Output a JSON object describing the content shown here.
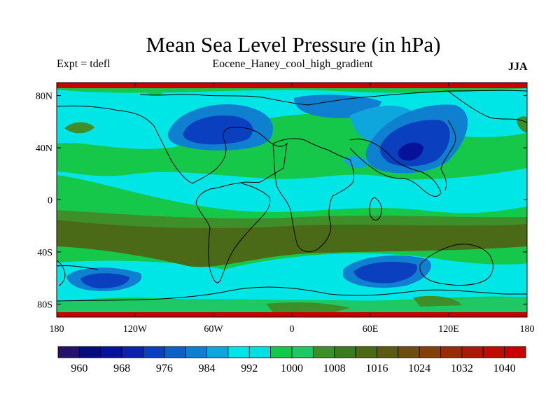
{
  "header": {
    "title": "Mean Sea Level Pressure (in hPa)",
    "experiment": "Expt = tdefl",
    "case_name": "Eocene_Haney_cool_high_gradient",
    "season": "JJA"
  },
  "axes": {
    "lat_ticks": [
      "80N",
      "40N",
      "0",
      "40S",
      "80S"
    ],
    "lon_ticks": [
      "180",
      "120W",
      "60W",
      "0",
      "60E",
      "120E",
      "180"
    ]
  },
  "colorbar": {
    "labels": [
      "960",
      "968",
      "976",
      "984",
      "992",
      "1000",
      "1008",
      "1016",
      "1024",
      "1032",
      "1040"
    ],
    "colors": [
      "#26126a",
      "#050c7d",
      "#07129a",
      "#0a22ad",
      "#0a3fbf",
      "#0f60c6",
      "#0f80d0",
      "#0ea6dd",
      "#00e5e5",
      "#00e0e0",
      "#16c84a",
      "#1ec864",
      "#3e8e2a",
      "#3c7a22",
      "#4a6a18",
      "#5a5a14",
      "#6e4e10",
      "#82400c",
      "#962c08",
      "#aa1a06",
      "#be0c04",
      "#c80000"
    ]
  },
  "chart_data": {
    "type": "heatmap",
    "title": "Mean Sea Level Pressure (in hPa)",
    "variable_units": "hPa",
    "xlim": [
      -180,
      180
    ],
    "ylim": [
      -90,
      90
    ],
    "x_ticks": [
      -180,
      -120,
      -60,
      0,
      60,
      120,
      180
    ],
    "y_ticks": [
      80,
      40,
      0,
      -40,
      -80
    ],
    "contour_levels": [
      960,
      964,
      968,
      972,
      976,
      980,
      984,
      988,
      992,
      996,
      1000,
      1004,
      1008,
      1012,
      1016,
      1020,
      1024,
      1028,
      1032,
      1036,
      1040
    ]
  }
}
